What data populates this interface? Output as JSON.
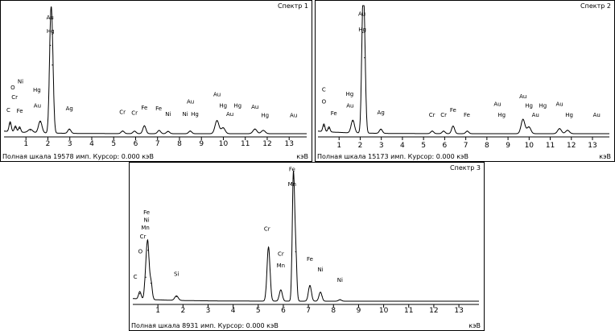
{
  "chart_data": [
    {
      "type": "line",
      "title": "Спектр 1",
      "status": "Полная шкала 19578 имп. Курсор: 0.000 кэВ",
      "unit": "кэВ",
      "xlim": [
        0,
        13.8
      ],
      "ylim": [
        0,
        19578
      ],
      "xticks": [
        1,
        2,
        3,
        4,
        5,
        6,
        7,
        8,
        9,
        10,
        11,
        12,
        13
      ],
      "peaks": [
        {
          "e": 0.28,
          "y": 1500,
          "w": 0.05
        },
        {
          "e": 0.52,
          "y": 900,
          "w": 0.05
        },
        {
          "e": 0.71,
          "y": 800,
          "w": 0.05
        },
        {
          "e": 1.2,
          "y": 500,
          "w": 0.1
        },
        {
          "e": 1.65,
          "y": 1800,
          "w": 0.08
        },
        {
          "e": 2.12,
          "y": 13500,
          "w": 0.06
        },
        {
          "e": 2.2,
          "y": 10500,
          "w": 0.06
        },
        {
          "e": 2.98,
          "y": 650,
          "w": 0.07
        },
        {
          "e": 5.41,
          "y": 400,
          "w": 0.07
        },
        {
          "e": 5.95,
          "y": 380,
          "w": 0.07
        },
        {
          "e": 6.4,
          "y": 1200,
          "w": 0.07
        },
        {
          "e": 7.07,
          "y": 500,
          "w": 0.07
        },
        {
          "e": 7.48,
          "y": 350,
          "w": 0.07
        },
        {
          "e": 8.49,
          "y": 400,
          "w": 0.07
        },
        {
          "e": 9.71,
          "y": 2000,
          "w": 0.09
        },
        {
          "e": 9.99,
          "y": 900,
          "w": 0.09
        },
        {
          "e": 11.44,
          "y": 700,
          "w": 0.09
        },
        {
          "e": 11.82,
          "y": 500,
          "w": 0.09
        }
      ],
      "labels": [
        {
          "text": "Au",
          "e": 2.1,
          "y": 17500
        },
        {
          "text": "Hg",
          "e": 2.12,
          "y": 15400
        },
        {
          "text": "Ni",
          "e": 0.75,
          "y": 7700
        },
        {
          "text": "O",
          "e": 0.4,
          "y": 6800
        },
        {
          "text": "Hg",
          "e": 1.5,
          "y": 6400
        },
        {
          "text": "Cr",
          "e": 0.48,
          "y": 5300
        },
        {
          "text": "Au",
          "e": 1.52,
          "y": 4000
        },
        {
          "text": "C",
          "e": 0.2,
          "y": 3300
        },
        {
          "text": "Fe",
          "e": 0.72,
          "y": 3200
        },
        {
          "text": "Ag",
          "e": 2.98,
          "y": 3600
        },
        {
          "text": "Cr",
          "e": 5.4,
          "y": 3000
        },
        {
          "text": "Cr",
          "e": 5.95,
          "y": 2900
        },
        {
          "text": "Fe",
          "e": 6.4,
          "y": 3700
        },
        {
          "text": "Fe",
          "e": 7.05,
          "y": 3600
        },
        {
          "text": "Ni",
          "e": 7.48,
          "y": 2700
        },
        {
          "text": "Ni",
          "e": 8.26,
          "y": 2700
        },
        {
          "text": "Au",
          "e": 8.5,
          "y": 4600
        },
        {
          "text": "Hg",
          "e": 8.7,
          "y": 2700
        },
        {
          "text": "Au",
          "e": 9.71,
          "y": 5700
        },
        {
          "text": "Hg",
          "e": 9.99,
          "y": 4000
        },
        {
          "text": "Hg",
          "e": 10.65,
          "y": 4000
        },
        {
          "text": "Au",
          "e": 10.3,
          "y": 2700
        },
        {
          "text": "Au",
          "e": 11.44,
          "y": 3800
        },
        {
          "text": "Hg",
          "e": 11.9,
          "y": 2500
        },
        {
          "text": "Au",
          "e": 13.2,
          "y": 2500
        }
      ]
    },
    {
      "type": "line",
      "title": "Спектр 2",
      "status": "Полная шкала 15173 имп. Курсор: 0.000 кэВ",
      "unit": "кэВ",
      "xlim": [
        0,
        13.8
      ],
      "ylim": [
        0,
        15173
      ],
      "xticks": [
        1,
        2,
        3,
        4,
        5,
        6,
        7,
        8,
        9,
        10,
        11,
        12,
        13
      ],
      "peaks": [
        {
          "e": 0.28,
          "y": 900,
          "w": 0.05
        },
        {
          "e": 0.52,
          "y": 600,
          "w": 0.05
        },
        {
          "e": 1.65,
          "y": 1500,
          "w": 0.08
        },
        {
          "e": 2.12,
          "y": 12000,
          "w": 0.06
        },
        {
          "e": 2.2,
          "y": 9000,
          "w": 0.06
        },
        {
          "e": 2.98,
          "y": 500,
          "w": 0.07
        },
        {
          "e": 5.41,
          "y": 300,
          "w": 0.07
        },
        {
          "e": 5.95,
          "y": 300,
          "w": 0.07
        },
        {
          "e": 6.4,
          "y": 900,
          "w": 0.07
        },
        {
          "e": 7.07,
          "y": 300,
          "w": 0.07
        },
        {
          "e": 9.71,
          "y": 1700,
          "w": 0.09
        },
        {
          "e": 9.99,
          "y": 800,
          "w": 0.09
        },
        {
          "e": 11.44,
          "y": 600,
          "w": 0.09
        },
        {
          "e": 11.82,
          "y": 400,
          "w": 0.09
        }
      ],
      "labels": [
        {
          "text": "Au",
          "e": 2.08,
          "y": 14000
        },
        {
          "text": "Hg",
          "e": 2.1,
          "y": 12100
        },
        {
          "text": "C",
          "e": 0.28,
          "y": 5000
        },
        {
          "text": "Hg",
          "e": 1.5,
          "y": 4500
        },
        {
          "text": "O",
          "e": 0.28,
          "y": 3600
        },
        {
          "text": "Au",
          "e": 1.52,
          "y": 3100
        },
        {
          "text": "Fe",
          "e": 0.75,
          "y": 2200
        },
        {
          "text": "Ag",
          "e": 2.98,
          "y": 2300
        },
        {
          "text": "Cr",
          "e": 5.4,
          "y": 2000
        },
        {
          "text": "Cr",
          "e": 5.95,
          "y": 2000
        },
        {
          "text": "Fe",
          "e": 6.4,
          "y": 2600
        },
        {
          "text": "Fe",
          "e": 7.05,
          "y": 2000
        },
        {
          "text": "Au",
          "e": 8.5,
          "y": 3300
        },
        {
          "text": "Hg",
          "e": 8.7,
          "y": 2000
        },
        {
          "text": "Au",
          "e": 9.71,
          "y": 4200
        },
        {
          "text": "Hg",
          "e": 9.99,
          "y": 3100
        },
        {
          "text": "Hg",
          "e": 10.65,
          "y": 3100
        },
        {
          "text": "Au",
          "e": 10.3,
          "y": 2000
        },
        {
          "text": "Au",
          "e": 11.44,
          "y": 3300
        },
        {
          "text": "Hg",
          "e": 11.9,
          "y": 2000
        },
        {
          "text": "Au",
          "e": 13.2,
          "y": 2000
        }
      ]
    },
    {
      "type": "line",
      "title": "Спектр 3",
      "status": "Полная шкала 8931 имп. Курсор: 0.000 кэВ",
      "unit": "кэВ",
      "xlim": [
        0,
        13.8
      ],
      "ylim": [
        0,
        8931
      ],
      "xticks": [
        1,
        2,
        3,
        4,
        5,
        6,
        7,
        8,
        9,
        10,
        11,
        12,
        13
      ],
      "peaks": [
        {
          "e": 0.28,
          "y": 500,
          "w": 0.05
        },
        {
          "e": 0.52,
          "y": 1600,
          "w": 0.05
        },
        {
          "e": 0.6,
          "y": 3400,
          "w": 0.05
        },
        {
          "e": 0.72,
          "y": 1200,
          "w": 0.05
        },
        {
          "e": 1.74,
          "y": 300,
          "w": 0.07
        },
        {
          "e": 5.41,
          "y": 3600,
          "w": 0.06
        },
        {
          "e": 5.9,
          "y": 750,
          "w": 0.06
        },
        {
          "e": 6.4,
          "y": 8200,
          "w": 0.045
        },
        {
          "e": 6.49,
          "y": 3300,
          "w": 0.045
        },
        {
          "e": 7.06,
          "y": 1050,
          "w": 0.06
        },
        {
          "e": 7.48,
          "y": 600,
          "w": 0.06
        },
        {
          "e": 8.26,
          "y": 100,
          "w": 0.06
        }
      ],
      "labels": [
        {
          "text": "Fe",
          "e": 6.35,
          "y": 8700
        },
        {
          "text": "Mn",
          "e": 6.35,
          "y": 7700
        },
        {
          "text": "Fe",
          "e": 0.55,
          "y": 5800
        },
        {
          "text": "Ni",
          "e": 0.55,
          "y": 5300
        },
        {
          "text": "Mn",
          "e": 0.5,
          "y": 4800
        },
        {
          "text": "Cr",
          "e": 0.4,
          "y": 4200
        },
        {
          "text": "O",
          "e": 0.3,
          "y": 3200
        },
        {
          "text": "C",
          "e": 0.1,
          "y": 1500
        },
        {
          "text": "Si",
          "e": 1.74,
          "y": 1700
        },
        {
          "text": "Cr",
          "e": 5.35,
          "y": 4700
        },
        {
          "text": "Cr",
          "e": 5.9,
          "y": 3050
        },
        {
          "text": "Mn",
          "e": 5.9,
          "y": 2250
        },
        {
          "text": "Fe",
          "e": 7.06,
          "y": 2700
        },
        {
          "text": "Ni",
          "e": 7.48,
          "y": 2000
        },
        {
          "text": "Ni",
          "e": 8.26,
          "y": 1300
        }
      ]
    }
  ]
}
